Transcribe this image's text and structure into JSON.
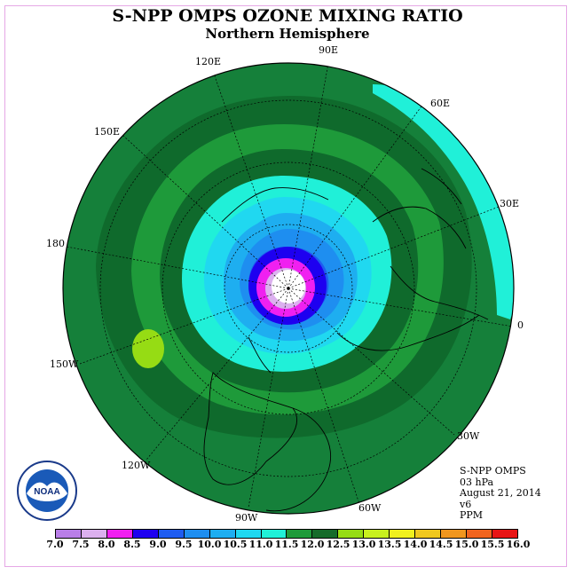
{
  "title": "S-NPP OMPS OZONE MIXING RATIO",
  "subtitle": "Northern Hemisphere",
  "info": {
    "instrument": "S-NPP OMPS",
    "level": "03 hPa",
    "date": "August 21, 2014",
    "version": "v6",
    "units": "PPM"
  },
  "longitude_labels": {
    "lon_90e": "90E",
    "lon_120e": "120E",
    "lon_60e": "60E",
    "lon_150e": "150E",
    "lon_30e": "30E",
    "lon_180": "180",
    "lon_0": "0",
    "lon_150w": "150W",
    "lon_30w": "30W",
    "lon_120w": "120W",
    "lon_60w": "60W",
    "lon_90w": "90W"
  },
  "logo": {
    "text": "NOAA"
  },
  "colorbar": {
    "ticks": [
      "7.0",
      "7.5",
      "8.0",
      "8.5",
      "9.0",
      "9.5",
      "10.0",
      "10.5",
      "11.0",
      "11.5",
      "12.0",
      "12.5",
      "13.0",
      "13.5",
      "14.0",
      "14.5",
      "15.0",
      "15.5",
      "16.0"
    ],
    "colors": [
      "#b97ee8",
      "#dcb0ef",
      "#f020f0",
      "#1e00f0",
      "#1e5cf0",
      "#1e8ef0",
      "#1eaef0",
      "#20d8f0",
      "#20f0d8",
      "#1e9a3a",
      "#156b2a",
      "#96dc14",
      "#c8f01e",
      "#f0f01e",
      "#f0c81e",
      "#f0961e",
      "#f0641e",
      "#e81414",
      "#7a4a2a"
    ]
  },
  "legend_colors": {
    "ocean_map_bg": "#15803a",
    "dark_band": "#0f6a2c",
    "light_green": "#1e9a3a",
    "cyan": "#20f0d8",
    "aqua": "#20d8f0",
    "sky": "#1eaef0",
    "mid_blue": "#1e8ef0",
    "blue": "#1e5cf0",
    "deep_blue": "#1e00f0",
    "magenta": "#f020f0",
    "lavender": "#dcb0ef",
    "center": "#ffffff",
    "lime": "#96dc14"
  }
}
